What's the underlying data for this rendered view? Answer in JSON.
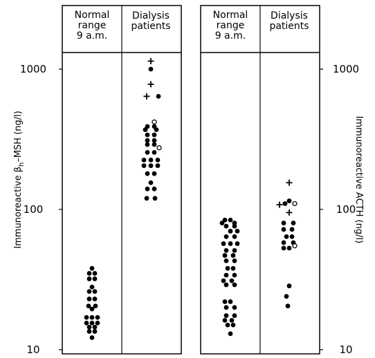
{
  "chart_data": {
    "type": "scatter",
    "scale": "log",
    "ylim": [
      10,
      2000
    ],
    "ticks": [
      1000,
      100,
      10
    ],
    "tick_labels": [
      "1000",
      "100",
      "10"
    ],
    "grid": false,
    "legend": "none",
    "panels": [
      {
        "ylabel_pre": "Immunoreactive β",
        "ylabel_sub": "h",
        "ylabel_post": "–MSH  (ng/l)",
        "ylabel_side": "left",
        "groups": [
          {
            "header_lines": [
              "Normal",
              "range",
              "9 a.m."
            ],
            "points": [
              {
                "dx": 0,
                "y": 38,
                "m": "dot"
              },
              {
                "dx": -4,
                "y": 35,
                "m": "dot"
              },
              {
                "dx": 4,
                "y": 35,
                "m": "dot"
              },
              {
                "dx": -4,
                "y": 32,
                "m": "dot"
              },
              {
                "dx": 4,
                "y": 32,
                "m": "dot"
              },
              {
                "dx": 0,
                "y": 28,
                "m": "dot"
              },
              {
                "dx": -4,
                "y": 26,
                "m": "dot"
              },
              {
                "dx": 4,
                "y": 26,
                "m": "dot"
              },
              {
                "dx": -4,
                "y": 23,
                "m": "dot"
              },
              {
                "dx": 4,
                "y": 23,
                "m": "dot"
              },
              {
                "dx": -5,
                "y": 20.5,
                "m": "dot"
              },
              {
                "dx": 5,
                "y": 20.5,
                "m": "dot"
              },
              {
                "dx": 0,
                "y": 19.5,
                "m": "dot"
              },
              {
                "dx": -8,
                "y": 17,
                "m": "dot"
              },
              {
                "dx": 0,
                "y": 17,
                "m": "dot"
              },
              {
                "dx": 8,
                "y": 17,
                "m": "dot"
              },
              {
                "dx": -8,
                "y": 15.5,
                "m": "dot"
              },
              {
                "dx": 0,
                "y": 15.5,
                "m": "dot"
              },
              {
                "dx": 8,
                "y": 15.5,
                "m": "dot"
              },
              {
                "dx": -4,
                "y": 14.5,
                "m": "dot"
              },
              {
                "dx": 4,
                "y": 14.5,
                "m": "dot"
              },
              {
                "dx": -4,
                "y": 13.5,
                "m": "dot"
              },
              {
                "dx": 4,
                "y": 13.5,
                "m": "dot"
              },
              {
                "dx": 0,
                "y": 12.2,
                "m": "dot"
              }
            ]
          },
          {
            "header_lines": [
              "Dialysis",
              "patients"
            ],
            "points": [
              {
                "dx": 0,
                "y": 1140,
                "m": "plus"
              },
              {
                "dx": 0,
                "y": 1000,
                "m": "dot"
              },
              {
                "dx": 0,
                "y": 780,
                "m": "plus"
              },
              {
                "dx": -6,
                "y": 640,
                "m": "plus"
              },
              {
                "dx": 11,
                "y": 640,
                "m": "dot"
              },
              {
                "dx": 5,
                "y": 420,
                "m": "circle"
              },
              {
                "dx": -5,
                "y": 390,
                "m": "dot"
              },
              {
                "dx": 5,
                "y": 390,
                "m": "dot"
              },
              {
                "dx": -8,
                "y": 370,
                "m": "dot"
              },
              {
                "dx": 8,
                "y": 370,
                "m": "dot"
              },
              {
                "dx": -5,
                "y": 340,
                "m": "dot"
              },
              {
                "dx": 5,
                "y": 340,
                "m": "dot"
              },
              {
                "dx": -5,
                "y": 310,
                "m": "dot"
              },
              {
                "dx": 5,
                "y": 310,
                "m": "dot"
              },
              {
                "dx": -5,
                "y": 290,
                "m": "dot"
              },
              {
                "dx": 5,
                "y": 290,
                "m": "dot"
              },
              {
                "dx": 12,
                "y": 275,
                "m": "circle"
              },
              {
                "dx": -5,
                "y": 255,
                "m": "dot"
              },
              {
                "dx": 5,
                "y": 255,
                "m": "dot"
              },
              {
                "dx": -10,
                "y": 225,
                "m": "dot"
              },
              {
                "dx": 0,
                "y": 225,
                "m": "dot"
              },
              {
                "dx": 10,
                "y": 225,
                "m": "dot"
              },
              {
                "dx": -10,
                "y": 205,
                "m": "dot"
              },
              {
                "dx": 0,
                "y": 205,
                "m": "dot"
              },
              {
                "dx": 10,
                "y": 205,
                "m": "dot"
              },
              {
                "dx": -5,
                "y": 180,
                "m": "dot"
              },
              {
                "dx": 5,
                "y": 180,
                "m": "dot"
              },
              {
                "dx": 0,
                "y": 155,
                "m": "dot"
              },
              {
                "dx": -5,
                "y": 140,
                "m": "dot"
              },
              {
                "dx": 5,
                "y": 140,
                "m": "dot"
              },
              {
                "dx": -6,
                "y": 120,
                "m": "dot"
              },
              {
                "dx": 6,
                "y": 120,
                "m": "dot"
              }
            ]
          }
        ]
      },
      {
        "ylabel_pre": "Immunoreactive  ACTH  (ng/l)",
        "ylabel_sub": "",
        "ylabel_post": "",
        "ylabel_side": "right",
        "groups": [
          {
            "header_lines": [
              "Normal",
              "range",
              "9 a.m."
            ],
            "points": [
              {
                "dx": -8,
                "y": 84,
                "m": "dot"
              },
              {
                "dx": 0,
                "y": 84,
                "m": "dot"
              },
              {
                "dx": -12,
                "y": 80,
                "m": "dot"
              },
              {
                "dx": 6,
                "y": 80,
                "m": "dot"
              },
              {
                "dx": -6,
                "y": 76,
                "m": "dot"
              },
              {
                "dx": 6,
                "y": 76,
                "m": "dot"
              },
              {
                "dx": 0,
                "y": 70,
                "m": "dot"
              },
              {
                "dx": 10,
                "y": 70,
                "m": "dot"
              },
              {
                "dx": -6,
                "y": 64,
                "m": "dot"
              },
              {
                "dx": 6,
                "y": 64,
                "m": "dot"
              },
              {
                "dx": -10,
                "y": 57,
                "m": "dot"
              },
              {
                "dx": 0,
                "y": 57,
                "m": "dot"
              },
              {
                "dx": 10,
                "y": 57,
                "m": "dot"
              },
              {
                "dx": -6,
                "y": 51,
                "m": "dot"
              },
              {
                "dx": 6,
                "y": 51,
                "m": "dot"
              },
              {
                "dx": -8,
                "y": 47,
                "m": "dot"
              },
              {
                "dx": 4,
                "y": 47,
                "m": "dot"
              },
              {
                "dx": -6,
                "y": 43,
                "m": "dot"
              },
              {
                "dx": 6,
                "y": 43,
                "m": "dot"
              },
              {
                "dx": -4,
                "y": 38,
                "m": "dot"
              },
              {
                "dx": 4,
                "y": 38,
                "m": "dot"
              },
              {
                "dx": -6,
                "y": 34,
                "m": "dot"
              },
              {
                "dx": 6,
                "y": 34,
                "m": "dot"
              },
              {
                "dx": -10,
                "y": 31,
                "m": "dot"
              },
              {
                "dx": 2,
                "y": 31,
                "m": "dot"
              },
              {
                "dx": -6,
                "y": 29,
                "m": "dot"
              },
              {
                "dx": 6,
                "y": 29,
                "m": "dot"
              },
              {
                "dx": -8,
                "y": 22,
                "m": "dot"
              },
              {
                "dx": 0,
                "y": 22,
                "m": "dot"
              },
              {
                "dx": -6,
                "y": 20,
                "m": "dot"
              },
              {
                "dx": 6,
                "y": 20,
                "m": "dot"
              },
              {
                "dx": -6,
                "y": 17.5,
                "m": "dot"
              },
              {
                "dx": 6,
                "y": 17.5,
                "m": "dot"
              },
              {
                "dx": -8,
                "y": 16.2,
                "m": "dot"
              },
              {
                "dx": 2,
                "y": 16.2,
                "m": "dot"
              },
              {
                "dx": -4,
                "y": 15,
                "m": "dot"
              },
              {
                "dx": 4,
                "y": 15,
                "m": "dot"
              },
              {
                "dx": 0,
                "y": 13,
                "m": "dot"
              }
            ]
          },
          {
            "header_lines": [
              "Dialysis",
              "patients"
            ],
            "points": [
              {
                "dx": 0,
                "y": 155,
                "m": "plus"
              },
              {
                "dx": 0,
                "y": 115,
                "m": "dot"
              },
              {
                "dx": -14,
                "y": 108,
                "m": "plus"
              },
              {
                "dx": -6,
                "y": 110,
                "m": "dot"
              },
              {
                "dx": 8,
                "y": 110,
                "m": "circle"
              },
              {
                "dx": 0,
                "y": 95,
                "m": "plus"
              },
              {
                "dx": -8,
                "y": 80,
                "m": "dot"
              },
              {
                "dx": 6,
                "y": 80,
                "m": "dot"
              },
              {
                "dx": -8,
                "y": 72,
                "m": "dot"
              },
              {
                "dx": 4,
                "y": 72,
                "m": "dot"
              },
              {
                "dx": -4,
                "y": 64,
                "m": "dot"
              },
              {
                "dx": 4,
                "y": 64,
                "m": "dot"
              },
              {
                "dx": -8,
                "y": 58,
                "m": "dot"
              },
              {
                "dx": 6,
                "y": 58,
                "m": "dot"
              },
              {
                "dx": 8,
                "y": 55,
                "m": "circle"
              },
              {
                "dx": -8,
                "y": 53,
                "m": "dot"
              },
              {
                "dx": 0,
                "y": 53,
                "m": "dot"
              },
              {
                "dx": 0,
                "y": 28.5,
                "m": "dot"
              },
              {
                "dx": -4,
                "y": 24,
                "m": "dot"
              },
              {
                "dx": -2,
                "y": 20.5,
                "m": "dot"
              }
            ]
          }
        ]
      }
    ]
  }
}
